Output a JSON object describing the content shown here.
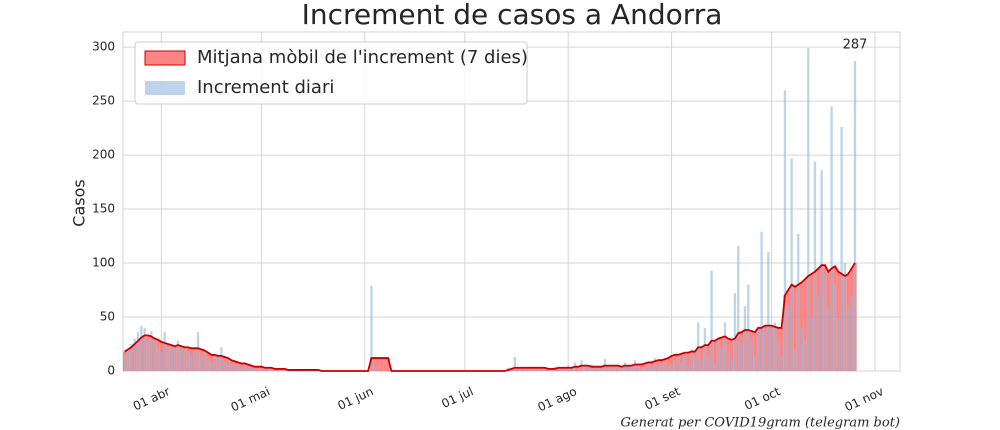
{
  "chart_data": {
    "type": "bar_ma",
    "title": "Increment de casos a Andorra",
    "y_label": "Casos",
    "footnote": "Generat per COVID19gram (telegram bot)",
    "categories": [
      "21 mar",
      "22 mar",
      "23 mar",
      "24 mar",
      "25 mar",
      "26 mar",
      "27 mar",
      "28 mar",
      "29 mar",
      "30 mar",
      "31 mar",
      "01 abr",
      "02 abr",
      "03 abr",
      "04 abr",
      "05 abr",
      "06 abr",
      "07 abr",
      "08 abr",
      "09 abr",
      "10 abr",
      "11 abr",
      "12 abr",
      "13 abr",
      "14 abr",
      "15 abr",
      "16 abr",
      "17 abr",
      "18 abr",
      "19 abr",
      "20 abr",
      "21 abr",
      "22 abr",
      "23 abr",
      "24 abr",
      "25 abr",
      "26 abr",
      "27 abr",
      "28 abr",
      "29 abr",
      "30 abr",
      "01 mai",
      "02 mai",
      "03 mai",
      "04 mai",
      "05 mai",
      "06 mai",
      "07 mai",
      "08 mai",
      "09 mai",
      "10 mai",
      "11 mai",
      "12 mai",
      "13 mai",
      "14 mai",
      "15 mai",
      "16 mai",
      "17 mai",
      "18 mai",
      "19 mai",
      "20 mai",
      "21 mai",
      "22 mai",
      "23 mai",
      "24 mai",
      "25 mai",
      "26 mai",
      "27 mai",
      "28 mai",
      "29 mai",
      "30 mai",
      "31 mai",
      "01 jun",
      "02 jun",
      "03 jun",
      "04 jun",
      "05 jun",
      "06 jun",
      "07 jun",
      "08 jun",
      "09 jun",
      "10 jun",
      "11 jun",
      "12 jun",
      "13 jun",
      "14 jun",
      "15 jun",
      "16 jun",
      "17 jun",
      "18 jun",
      "19 jun",
      "20 jun",
      "21 jun",
      "22 jun",
      "23 jun",
      "24 jun",
      "25 jun",
      "26 jun",
      "27 jun",
      "28 jun",
      "29 jun",
      "30 jun",
      "01 jul",
      "02 jul",
      "03 jul",
      "04 jul",
      "05 jul",
      "06 jul",
      "07 jul",
      "08 jul",
      "09 jul",
      "10 jul",
      "11 jul",
      "12 jul",
      "13 jul",
      "14 jul",
      "15 jul",
      "16 jul",
      "17 jul",
      "18 jul",
      "19 jul",
      "20 jul",
      "21 jul",
      "22 jul",
      "23 jul",
      "24 jul",
      "25 jul",
      "26 jul",
      "27 jul",
      "28 jul",
      "29 jul",
      "30 jul",
      "31 jul",
      "01 ago",
      "02 ago",
      "03 ago",
      "04 ago",
      "05 ago",
      "06 ago",
      "07 ago",
      "08 ago",
      "09 ago",
      "10 ago",
      "11 ago",
      "12 ago",
      "13 ago",
      "14 ago",
      "15 ago",
      "16 ago",
      "17 ago",
      "18 ago",
      "19 ago",
      "20 ago",
      "21 ago",
      "22 ago",
      "23 ago",
      "24 ago",
      "25 ago",
      "26 ago",
      "27 ago",
      "28 ago",
      "29 ago",
      "30 ago",
      "31 ago",
      "01 set",
      "02 set",
      "03 set",
      "04 set",
      "05 set",
      "06 set",
      "07 set",
      "08 set",
      "09 set",
      "10 set",
      "11 set",
      "12 set",
      "13 set",
      "14 set",
      "15 set",
      "16 set",
      "17 set",
      "18 set",
      "19 set",
      "20 set",
      "21 set",
      "22 set",
      "23 set",
      "24 set",
      "25 set",
      "26 set",
      "27 set",
      "28 set",
      "29 set",
      "30 set",
      "01 oct",
      "02 oct",
      "03 oct",
      "04 oct",
      "05 oct",
      "06 oct",
      "07 oct",
      "08 oct",
      "09 oct",
      "10 oct",
      "11 oct",
      "12 oct",
      "13 oct",
      "14 oct",
      "15 oct",
      "16 oct",
      "17 oct",
      "18 oct",
      "19 oct",
      "20 oct",
      "21 oct",
      "22 oct",
      "23 oct",
      "24 oct",
      "25 oct",
      "26 oct",
      "27 oct",
      "28 oct",
      "29 oct",
      "30 oct",
      "31 oct",
      "01 nov",
      "02 nov",
      "03 nov",
      "04 nov",
      "05 nov",
      "06 nov",
      "07 nov",
      "08 nov"
    ],
    "series": [
      {
        "name": "Mitjana mòbil de l'increment (7 dies)",
        "color": "#ff6f6f",
        "line_color": "#c40000",
        "values": [
          18,
          20,
          22,
          25,
          28,
          31,
          33,
          33,
          32,
          30,
          29,
          27,
          26,
          25,
          24,
          23,
          24,
          23,
          22,
          22,
          21,
          21,
          21,
          20,
          19,
          17,
          15,
          15,
          14,
          14,
          13,
          12,
          10,
          9,
          8,
          7,
          7,
          6,
          5,
          4,
          4,
          4,
          3,
          3,
          3,
          2,
          2,
          2,
          2,
          1,
          1,
          1,
          1,
          1,
          1,
          1,
          1,
          1,
          1,
          0,
          0,
          0,
          0,
          0,
          0,
          0,
          0,
          0,
          0,
          0,
          0,
          0,
          0,
          0,
          12,
          12,
          12,
          12,
          12,
          12,
          0,
          0,
          0,
          0,
          0,
          0,
          0,
          0,
          0,
          0,
          0,
          0,
          0,
          0,
          0,
          0,
          0,
          0,
          0,
          0,
          0,
          0,
          0,
          0,
          0,
          0,
          0,
          0,
          0,
          0,
          0,
          0,
          0,
          0,
          0,
          1,
          2,
          3,
          3,
          3,
          3,
          3,
          3,
          3,
          3,
          3,
          3,
          2,
          2,
          2,
          3,
          3,
          3,
          3,
          3,
          4,
          4,
          5,
          5,
          5,
          4,
          4,
          4,
          4,
          5,
          5,
          5,
          5,
          5,
          4,
          5,
          5,
          5,
          6,
          6,
          6,
          7,
          8,
          8,
          9,
          10,
          10,
          11,
          12,
          14,
          15,
          15,
          16,
          17,
          17,
          18,
          18,
          22,
          22,
          24,
          24,
          28,
          28,
          30,
          31,
          32,
          30,
          29,
          30,
          35,
          36,
          38,
          38,
          37,
          36,
          40,
          40,
          42,
          42,
          42,
          41,
          40,
          40,
          70,
          75,
          80,
          78,
          80,
          82,
          85,
          88,
          90,
          92,
          95,
          98,
          98,
          92,
          95,
          97,
          92,
          90,
          88,
          90,
          95,
          100,
          null,
          null,
          null,
          null,
          null,
          null,
          null,
          null,
          null,
          null,
          null,
          null,
          null
        ]
      },
      {
        "name": "Increment diari",
        "color": "#8fb9dc",
        "values": [
          15,
          20,
          25,
          30,
          36,
          42,
          40,
          28,
          37,
          30,
          22,
          18,
          36,
          22,
          25,
          20,
          28,
          22,
          20,
          18,
          15,
          22,
          36,
          12,
          18,
          10,
          8,
          14,
          12,
          22,
          8,
          10,
          6,
          5,
          8,
          4,
          6,
          3,
          4,
          5,
          2,
          2,
          3,
          1,
          2,
          1,
          0,
          1,
          2,
          0,
          1,
          1,
          0,
          0,
          1,
          0,
          1,
          0,
          0,
          1,
          0,
          0,
          0,
          0,
          1,
          0,
          0,
          0,
          0,
          0,
          0,
          0,
          0,
          0,
          79,
          5,
          0,
          0,
          0,
          0,
          0,
          0,
          0,
          0,
          0,
          0,
          0,
          0,
          0,
          0,
          0,
          0,
          0,
          0,
          0,
          0,
          0,
          0,
          0,
          0,
          0,
          0,
          0,
          0,
          0,
          0,
          0,
          0,
          0,
          0,
          0,
          0,
          0,
          0,
          0,
          3,
          1,
          13,
          2,
          1,
          3,
          2,
          1,
          4,
          2,
          1,
          3,
          2,
          1,
          4,
          3,
          2,
          1,
          5,
          3,
          8,
          2,
          10,
          4,
          3,
          6,
          2,
          3,
          5,
          11,
          4,
          2,
          3,
          6,
          4,
          8,
          3,
          5,
          10,
          7,
          2,
          4,
          6,
          3,
          12,
          5,
          7,
          8,
          4,
          6,
          10,
          12,
          8,
          15,
          5,
          20,
          12,
          45,
          10,
          40,
          14,
          93,
          8,
          30,
          22,
          45,
          18,
          10,
          72,
          116,
          25,
          60,
          80,
          30,
          15,
          38,
          129,
          40,
          110,
          40,
          45,
          30,
          15,
          260,
          60,
          197,
          20,
          127,
          40,
          30,
          299,
          50,
          194,
          70,
          186,
          90,
          60,
          245,
          80,
          50,
          226,
          100,
          60,
          70,
          287,
          null,
          null,
          null,
          null,
          null,
          null,
          null,
          null,
          null,
          null,
          null,
          null,
          null
        ]
      }
    ],
    "ylim": [
      0,
      314
    ],
    "yticks": [
      0,
      50,
      100,
      150,
      200,
      250,
      300
    ],
    "xticks": [
      "01 abr",
      "01 mai",
      "01 jun",
      "01 jul",
      "01 ago",
      "01 set",
      "01 oct",
      "01 nov"
    ],
    "grid": true,
    "legend": "upper left"
  }
}
